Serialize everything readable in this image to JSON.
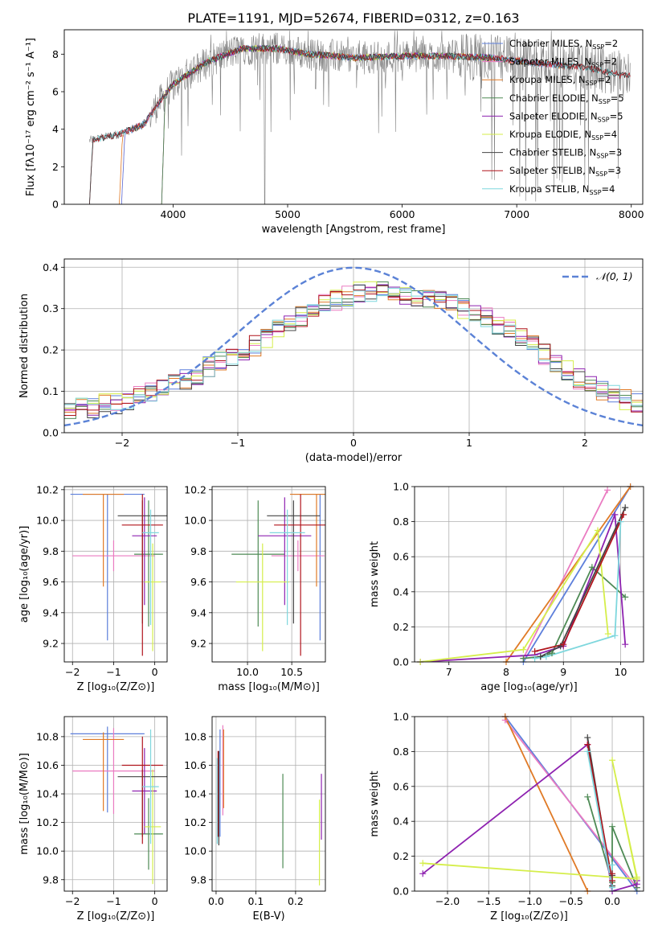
{
  "figure": {
    "title": "PLATE=1191, MJD=52674, FIBERID=0312, z=0.163"
  },
  "colors": {
    "fit_chabrier_miles": "#5d7fdb",
    "fit_salpeter_miles": "#ea7bc1",
    "fit_kroupa_miles": "#e07a26",
    "fit_chabrier_elodie": "#4e8a55",
    "fit_salpeter_elodie": "#8e22b0",
    "fit_kroupa_elodie": "#d5ee4a",
    "fit_chabrier_stelib": "#444444",
    "fit_salpeter_stelib": "#b0141c",
    "fit_kroupa_stelib": "#7ed7dd",
    "data_spectrum": "#808080",
    "normal_curve": "#5b82d6",
    "grid": "#b0b0b0"
  },
  "chart_data": [
    {
      "id": "spectrum",
      "type": "line",
      "xlabel": "wavelength [Angstrom, rest frame]",
      "ylabel": "Flux [fλ10⁻¹⁷ erg cm⁻² s⁻¹ A⁻¹]",
      "xlim": [
        3050,
        8100
      ],
      "ylim": [
        0,
        9.3
      ],
      "xticks": [
        4000,
        5000,
        6000,
        7000,
        8000
      ],
      "yticks": [
        0,
        2,
        4,
        6,
        8
      ],
      "grid": false,
      "legend_position": "right",
      "legend": [
        {
          "label": "Chabrier MILES, N",
          "sub": "SSP",
          "suffix": "=2",
          "color_key": "fit_chabrier_miles"
        },
        {
          "label": "Salpeter MILES, N",
          "sub": "SSP",
          "suffix": "=2",
          "color_key": "fit_salpeter_miles"
        },
        {
          "label": "Kroupa MILES, N",
          "sub": "SSP",
          "suffix": "=2",
          "color_key": "fit_kroupa_miles"
        },
        {
          "label": "Chabrier ELODIE, N",
          "sub": "SSP",
          "suffix": "=5",
          "color_key": "fit_chabrier_elodie"
        },
        {
          "label": "Salpeter ELODIE, N",
          "sub": "SSP",
          "suffix": "=5",
          "color_key": "fit_salpeter_elodie"
        },
        {
          "label": "Kroupa ELODIE, N",
          "sub": "SSP",
          "suffix": "=4",
          "color_key": "fit_kroupa_elodie"
        },
        {
          "label": "Chabrier STELIB, N",
          "sub": "SSP",
          "suffix": "=3",
          "color_key": "fit_chabrier_stelib"
        },
        {
          "label": "Salpeter STELIB, N",
          "sub": "SSP",
          "suffix": "=3",
          "color_key": "fit_salpeter_stelib"
        },
        {
          "label": "Kroupa STELIB, N",
          "sub": "SSP",
          "suffix": "=4",
          "color_key": "fit_kroupa_stelib"
        }
      ],
      "continuum": [
        [
          3270,
          3.4
        ],
        [
          3500,
          3.7
        ],
        [
          3650,
          4.0
        ],
        [
          3750,
          4.3
        ],
        [
          3850,
          5.2
        ],
        [
          4000,
          6.4
        ],
        [
          4300,
          7.6
        ],
        [
          4600,
          8.3
        ],
        [
          4900,
          8.3
        ],
        [
          5200,
          8.0
        ],
        [
          5600,
          7.8
        ],
        [
          6000,
          7.9
        ],
        [
          6400,
          7.9
        ],
        [
          6800,
          7.8
        ],
        [
          7200,
          7.5
        ],
        [
          7600,
          7.3
        ],
        [
          7900,
          6.9
        ]
      ]
    },
    {
      "id": "residuals",
      "type": "step",
      "xlabel": "(data-model)/error",
      "ylabel": "Normed distribution",
      "xlim": [
        -2.5,
        2.5
      ],
      "ylim": [
        0,
        0.42
      ],
      "xticks": [
        -2,
        -1,
        0,
        1,
        2
      ],
      "yticks": [
        0.0,
        0.1,
        0.2,
        0.3,
        0.4
      ],
      "grid": true,
      "legend": "𝒩(0, 1)",
      "legend_position": "upper right",
      "normal_curve": {
        "mean": 0,
        "sd": 1
      },
      "bins": {
        "start": -2.5,
        "width": 0.1,
        "count": 50
      },
      "histogram_envelope": [
        0.05,
        0.06,
        0.06,
        0.07,
        0.07,
        0.08,
        0.09,
        0.1,
        0.11,
        0.12,
        0.13,
        0.14,
        0.16,
        0.17,
        0.18,
        0.2,
        0.21,
        0.23,
        0.25,
        0.27,
        0.28,
        0.3,
        0.31,
        0.32,
        0.33,
        0.34,
        0.34,
        0.34,
        0.33,
        0.33,
        0.33,
        0.32,
        0.32,
        0.31,
        0.3,
        0.29,
        0.28,
        0.26,
        0.25,
        0.23,
        0.21,
        0.19,
        0.17,
        0.15,
        0.13,
        0.12,
        0.1,
        0.09,
        0.08,
        0.07
      ]
    },
    {
      "id": "age_vs_Z",
      "type": "errorbar",
      "xlabel": "Z [log₁₀(Z/Z⊙)]",
      "ylabel": "age  [log₁₀(age/yr)]",
      "xlim": [
        -2.2,
        0.3
      ],
      "ylim": [
        9.08,
        10.22
      ],
      "xticks": [
        -2,
        -1,
        0
      ],
      "yticks": [
        9.2,
        9.4,
        9.6,
        9.8,
        10.0,
        10.2
      ],
      "grid": true,
      "points": [
        {
          "color_key": "fit_chabrier_miles",
          "x": -1.15,
          "y": 10.17,
          "xerr": 0.9,
          "yerr": [
            0.95,
            0.0
          ]
        },
        {
          "color_key": "fit_salpeter_miles",
          "x": -1.0,
          "y": 9.77,
          "xerr": 1.0,
          "yerr": [
            0.1,
            0.1
          ]
        },
        {
          "color_key": "fit_kroupa_miles",
          "x": -1.25,
          "y": 10.17,
          "xerr": 0.5,
          "yerr": [
            0.6,
            0.0
          ]
        },
        {
          "color_key": "fit_chabrier_elodie",
          "x": -0.15,
          "y": 9.78,
          "xerr": 0.35,
          "yerr": [
            0.47,
            0.35
          ]
        },
        {
          "color_key": "fit_salpeter_elodie",
          "x": -0.25,
          "y": 9.9,
          "xerr": 0.3,
          "yerr": [
            0.45,
            0.25
          ]
        },
        {
          "color_key": "fit_kroupa_elodie",
          "x": -0.05,
          "y": 9.6,
          "xerr": 0.2,
          "yerr": [
            0.45,
            0.25
          ]
        },
        {
          "color_key": "fit_chabrier_stelib",
          "x": -0.3,
          "y": 10.03,
          "xerr": 0.6,
          "yerr": [
            0.7,
            0.1
          ]
        },
        {
          "color_key": "fit_salpeter_stelib",
          "x": -0.3,
          "y": 9.97,
          "xerr": 0.5,
          "yerr": [
            0.85,
            0.2
          ]
        },
        {
          "color_key": "fit_kroupa_stelib",
          "x": -0.1,
          "y": 9.92,
          "xerr": 0.2,
          "yerr": [
            0.6,
            0.15
          ]
        }
      ]
    },
    {
      "id": "age_vs_mass",
      "type": "errorbar",
      "xlabel": "mass [log₁₀(M/M⊙)]",
      "ylabel": "",
      "xlim": [
        9.6,
        10.88
      ],
      "ylim": [
        9.08,
        10.22
      ],
      "xticks": [
        10.0,
        10.5
      ],
      "yticks": [
        9.2,
        9.4,
        9.6,
        9.8,
        10.0,
        10.2
      ],
      "grid": true,
      "points": [
        {
          "color_key": "fit_chabrier_miles",
          "x": 10.82,
          "y": 10.17,
          "xerr": 0.3,
          "yerr": [
            0.95,
            0.0
          ]
        },
        {
          "color_key": "fit_salpeter_miles",
          "x": 10.57,
          "y": 9.77,
          "xerr": 0.3,
          "yerr": [
            0.1,
            0.1
          ]
        },
        {
          "color_key": "fit_kroupa_miles",
          "x": 10.78,
          "y": 10.17,
          "xerr": 0.3,
          "yerr": [
            0.6,
            0.0
          ]
        },
        {
          "color_key": "fit_chabrier_elodie",
          "x": 10.12,
          "y": 9.78,
          "xerr": 0.3,
          "yerr": [
            0.47,
            0.35
          ]
        },
        {
          "color_key": "fit_salpeter_elodie",
          "x": 10.42,
          "y": 9.9,
          "xerr": 0.3,
          "yerr": [
            0.45,
            0.25
          ]
        },
        {
          "color_key": "fit_kroupa_elodie",
          "x": 10.17,
          "y": 9.6,
          "xerr": 0.3,
          "yerr": [
            0.45,
            0.25
          ]
        },
        {
          "color_key": "fit_chabrier_stelib",
          "x": 10.52,
          "y": 10.03,
          "xerr": 0.3,
          "yerr": [
            0.7,
            0.1
          ]
        },
        {
          "color_key": "fit_salpeter_stelib",
          "x": 10.6,
          "y": 9.97,
          "xerr": 0.3,
          "yerr": [
            0.85,
            0.2
          ]
        },
        {
          "color_key": "fit_kroupa_stelib",
          "x": 10.45,
          "y": 9.92,
          "xerr": 0.2,
          "yerr": [
            0.6,
            0.15
          ]
        }
      ]
    },
    {
      "id": "mass_weight_vs_age",
      "type": "line",
      "xlabel": "age  [log₁₀(age/yr)]",
      "ylabel": "mass weight",
      "xlim": [
        6.4,
        10.4
      ],
      "ylim": [
        0,
        1
      ],
      "xticks": [
        7,
        8,
        9,
        10
      ],
      "yticks": [
        0.0,
        0.2,
        0.4,
        0.6,
        0.8,
        1.0
      ],
      "grid": true,
      "series": [
        {
          "color_key": "fit_chabrier_miles",
          "x": [
            8.3,
            10.17
          ],
          "y": [
            0.0,
            1.0
          ]
        },
        {
          "color_key": "fit_salpeter_miles",
          "x": [
            8.3,
            9.77
          ],
          "y": [
            0.02,
            0.98
          ]
        },
        {
          "color_key": "fit_kroupa_miles",
          "x": [
            8.0,
            10.17
          ],
          "y": [
            0.0,
            1.0
          ]
        },
        {
          "color_key": "fit_chabrier_elodie",
          "x": [
            8.3,
            8.6,
            8.8,
            9.5,
            10.08
          ],
          "y": [
            0.02,
            0.03,
            0.05,
            0.54,
            0.37
          ]
        },
        {
          "color_key": "fit_salpeter_elodie",
          "x": [
            6.5,
            8.5,
            9.0,
            9.9,
            10.08
          ],
          "y": [
            0.0,
            0.04,
            0.09,
            0.84,
            0.1
          ]
        },
        {
          "color_key": "fit_kroupa_elodie",
          "x": [
            6.5,
            8.3,
            9.6,
            9.78
          ],
          "y": [
            0.0,
            0.07,
            0.75,
            0.16
          ]
        },
        {
          "color_key": "fit_chabrier_stelib",
          "x": [
            8.6,
            8.95,
            10.08
          ],
          "y": [
            0.03,
            0.09,
            0.88
          ]
        },
        {
          "color_key": "fit_salpeter_stelib",
          "x": [
            8.5,
            9.0,
            10.05
          ],
          "y": [
            0.06,
            0.1,
            0.84
          ]
        },
        {
          "color_key": "fit_kroupa_stelib",
          "x": [
            8.5,
            8.7,
            9.9,
            10.0
          ],
          "y": [
            0.02,
            0.03,
            0.15,
            0.8
          ]
        }
      ]
    },
    {
      "id": "mass_vs_Z",
      "type": "errorbar",
      "xlabel": "Z [log₁₀(Z/Z⊙)]",
      "ylabel": "mass [log₁₀(M/M⊙)]",
      "xlim": [
        -2.2,
        0.3
      ],
      "ylim": [
        9.72,
        10.94
      ],
      "xticks": [
        -2,
        -1,
        0
      ],
      "yticks": [
        9.8,
        10.0,
        10.2,
        10.4,
        10.6,
        10.8
      ],
      "grid": true,
      "points": [
        {
          "color_key": "fit_chabrier_miles",
          "x": -1.15,
          "y": 10.82,
          "xerr": 0.9,
          "yerr": [
            0.55,
            0.05
          ]
        },
        {
          "color_key": "fit_salpeter_miles",
          "x": -1.0,
          "y": 10.56,
          "xerr": 1.0,
          "yerr": [
            0.3,
            0.3
          ]
        },
        {
          "color_key": "fit_kroupa_miles",
          "x": -1.25,
          "y": 10.78,
          "xerr": 0.5,
          "yerr": [
            0.5,
            0.05
          ]
        },
        {
          "color_key": "fit_chabrier_elodie",
          "x": -0.15,
          "y": 10.12,
          "xerr": 0.35,
          "yerr": [
            0.25,
            0.25
          ]
        },
        {
          "color_key": "fit_salpeter_elodie",
          "x": -0.25,
          "y": 10.42,
          "xerr": 0.3,
          "yerr": [
            0.3,
            0.3
          ]
        },
        {
          "color_key": "fit_kroupa_elodie",
          "x": -0.05,
          "y": 10.17,
          "xerr": 0.2,
          "yerr": [
            0.4,
            0.4
          ]
        },
        {
          "color_key": "fit_chabrier_stelib",
          "x": -0.3,
          "y": 10.52,
          "xerr": 0.6,
          "yerr": [
            0.42,
            0.05
          ]
        },
        {
          "color_key": "fit_salpeter_stelib",
          "x": -0.3,
          "y": 10.6,
          "xerr": 0.5,
          "yerr": [
            0.55,
            0.2
          ]
        },
        {
          "color_key": "fit_kroupa_stelib",
          "x": -0.1,
          "y": 10.45,
          "xerr": 0.2,
          "yerr": [
            0.4,
            0.4
          ]
        }
      ]
    },
    {
      "id": "ebv",
      "type": "errorbar",
      "xlabel": "E(B-V)",
      "ylabel": "",
      "xlim": [
        -0.01,
        0.275
      ],
      "ylim": [
        9.72,
        10.94
      ],
      "xticks": [
        0.0,
        0.1,
        0.2
      ],
      "yticks": [
        9.8,
        10.0,
        10.2,
        10.4,
        10.6,
        10.8
      ],
      "grid": true,
      "points": [
        {
          "color_key": "fit_chabrier_miles",
          "x": 0.01,
          "y": 10.5,
          "xerr": 0.0,
          "yerr": [
            0.4,
            0.35
          ]
        },
        {
          "color_key": "fit_salpeter_miles",
          "x": 0.017,
          "y": 10.55,
          "xerr": 0.0,
          "yerr": [
            0.3,
            0.33
          ]
        },
        {
          "color_key": "fit_kroupa_miles",
          "x": 0.019,
          "y": 10.6,
          "xerr": 0.0,
          "yerr": [
            0.3,
            0.25
          ]
        },
        {
          "color_key": "fit_chabrier_elodie",
          "x": 0.168,
          "y": 10.21,
          "xerr": 0.0,
          "yerr": [
            0.33,
            0.33
          ]
        },
        {
          "color_key": "fit_salpeter_elodie",
          "x": 0.265,
          "y": 10.31,
          "xerr": 0.0,
          "yerr": [
            0.23,
            0.23
          ]
        },
        {
          "color_key": "fit_kroupa_elodie",
          "x": 0.26,
          "y": 10.06,
          "xerr": 0.0,
          "yerr": [
            0.3,
            0.3
          ]
        },
        {
          "color_key": "fit_chabrier_stelib",
          "x": 0.007,
          "y": 10.37,
          "xerr": 0.0,
          "yerr": [
            0.33,
            0.33
          ]
        },
        {
          "color_key": "fit_salpeter_stelib",
          "x": 0.005,
          "y": 10.4,
          "xerr": 0.0,
          "yerr": [
            0.3,
            0.3
          ]
        },
        {
          "color_key": "fit_kroupa_stelib",
          "x": 0.003,
          "y": 10.35,
          "xerr": 0.0,
          "yerr": [
            0.3,
            0.3
          ]
        }
      ]
    },
    {
      "id": "mass_weight_vs_Z",
      "type": "line",
      "xlabel": "Z [log₁₀(Z/Z⊙)]",
      "ylabel": "mass weight",
      "xlim": [
        -2.4,
        0.38
      ],
      "ylim": [
        0,
        1
      ],
      "xticks": [
        -2.0,
        -1.5,
        -1.0,
        -0.5,
        0.0
      ],
      "yticks": [
        0.0,
        0.2,
        0.4,
        0.6,
        0.8,
        1.0
      ],
      "grid": true,
      "series": [
        {
          "color_key": "fit_chabrier_miles",
          "x": [
            -1.3,
            0.3
          ],
          "y": [
            1.0,
            0.0
          ]
        },
        {
          "color_key": "fit_salpeter_miles",
          "x": [
            -1.3,
            0.3
          ],
          "y": [
            0.98,
            0.02
          ]
        },
        {
          "color_key": "fit_kroupa_miles",
          "x": [
            -1.3,
            -0.3
          ],
          "y": [
            1.0,
            0.0
          ]
        },
        {
          "color_key": "fit_chabrier_elodie",
          "x": [
            -0.3,
            0.0,
            0.0,
            0.0,
            0.3
          ],
          "y": [
            0.54,
            0.05,
            0.03,
            0.37,
            0.02
          ]
        },
        {
          "color_key": "fit_salpeter_elodie",
          "x": [
            -2.3,
            -0.3,
            0.0,
            0.3,
            0.3
          ],
          "y": [
            0.1,
            0.84,
            0.0,
            0.04,
            0.06
          ]
        },
        {
          "color_key": "fit_kroupa_elodie",
          "x": [
            -2.3,
            0.3,
            0.0,
            0.3
          ],
          "y": [
            0.16,
            0.07,
            0.75,
            0.08
          ]
        },
        {
          "color_key": "fit_chabrier_stelib",
          "x": [
            -0.3,
            0.0,
            0.0
          ],
          "y": [
            0.88,
            0.03,
            0.09
          ]
        },
        {
          "color_key": "fit_salpeter_stelib",
          "x": [
            -0.3,
            0.0,
            0.0
          ],
          "y": [
            0.84,
            0.06,
            0.1
          ]
        },
        {
          "color_key": "fit_kroupa_stelib",
          "x": [
            -0.3,
            0.0,
            0.0
          ],
          "y": [
            0.8,
            0.02,
            0.15
          ]
        }
      ]
    }
  ]
}
